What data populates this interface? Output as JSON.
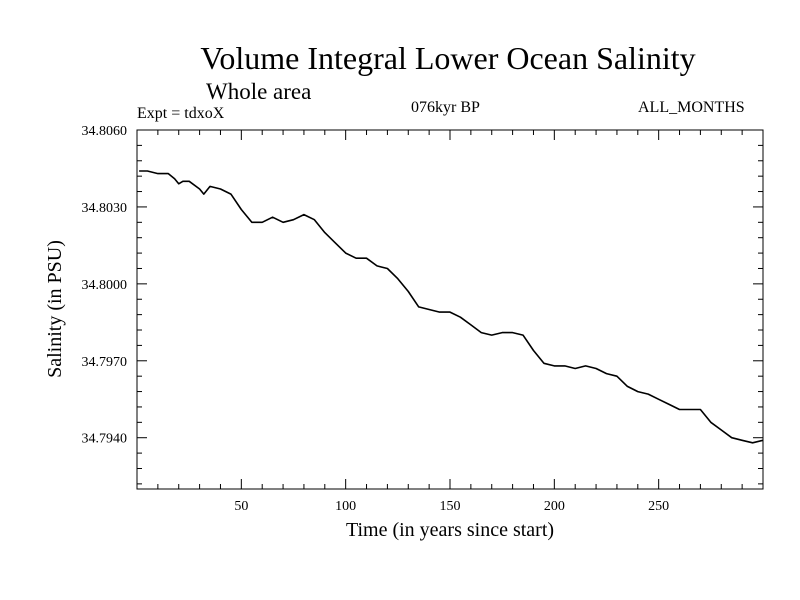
{
  "header": {
    "title": "Volume Integral Lower Ocean Salinity",
    "subtitle": "Whole area",
    "experiment": "Expt = tdxoX",
    "period": "076kyr BP",
    "months": "ALL_MONTHS"
  },
  "chart_data": {
    "type": "line",
    "title": "Volume Integral Lower Ocean Salinity",
    "subtitle": "Whole area",
    "xlabel": "Time (in years since start)",
    "ylabel": "Salinity (in PSU)",
    "xlim": [
      0,
      300
    ],
    "ylim": [
      34.792,
      34.806
    ],
    "xticks": [
      50,
      100,
      150,
      200,
      250
    ],
    "yticks": [
      34.794,
      34.797,
      34.8,
      34.803,
      34.806
    ],
    "ytick_labels": [
      "34.7940",
      "34.7970",
      "34.8000",
      "34.8030",
      "34.8060"
    ],
    "grid": false,
    "line_color": "#000000",
    "series": [
      {
        "x": [
          1,
          5,
          10,
          15,
          18,
          20,
          22,
          25,
          30,
          32,
          35,
          40,
          45,
          50,
          55,
          60,
          65,
          70,
          75,
          80,
          85,
          90,
          95,
          100,
          105,
          110,
          115,
          120,
          125,
          130,
          135,
          140,
          145,
          150,
          155,
          160,
          165,
          170,
          175,
          180,
          185,
          190,
          195,
          200,
          205,
          210,
          215,
          220,
          225,
          230,
          235,
          240,
          245,
          250,
          255,
          260,
          265,
          270,
          275,
          280,
          285,
          290,
          295,
          300
        ],
        "values": [
          34.8044,
          34.8044,
          34.8043,
          34.8043,
          34.8041,
          34.8039,
          34.804,
          34.804,
          34.8037,
          34.8035,
          34.8038,
          34.8037,
          34.8035,
          34.8029,
          34.8024,
          34.8024,
          34.8026,
          34.8024,
          34.8025,
          34.8027,
          34.8025,
          34.802,
          34.8016,
          34.8012,
          34.801,
          34.801,
          34.8007,
          34.8006,
          34.8002,
          34.7997,
          34.7991,
          34.799,
          34.7989,
          34.7989,
          34.7987,
          34.7984,
          34.7981,
          34.798,
          34.7981,
          34.7981,
          34.798,
          34.7974,
          34.7969,
          34.7968,
          34.7968,
          34.7967,
          34.7968,
          34.7967,
          34.7965,
          34.7964,
          34.796,
          34.7958,
          34.7957,
          34.7955,
          34.7953,
          34.7951,
          34.7951,
          34.7951,
          34.7946,
          34.7943,
          34.794,
          34.7939,
          34.7938,
          34.7939
        ]
      }
    ]
  }
}
